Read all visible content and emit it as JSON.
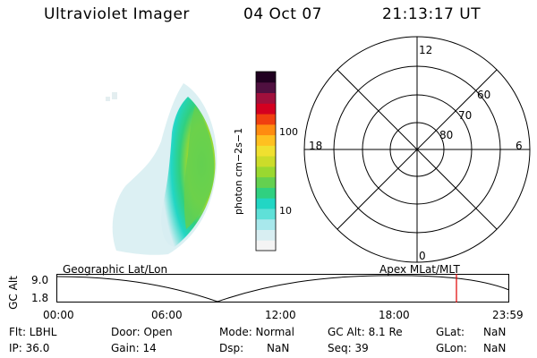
{
  "header": {
    "instrument": "Ultraviolet Imager",
    "date": "04 Oct 07",
    "time": "21:13:17 UT"
  },
  "colorbar": {
    "unit_label": "photon cm−2s−1",
    "ticks": [
      "100",
      "10"
    ],
    "colors": [
      "#f4f4f4",
      "#d8eef2",
      "#a8e8ec",
      "#5fe0d8",
      "#22d6c4",
      "#30d080",
      "#64d050",
      "#9ad830",
      "#ccdc2a",
      "#f0e030",
      "#ffc020",
      "#ff8c10",
      "#f04010",
      "#d40020",
      "#a0103c",
      "#501040",
      "#200020"
    ]
  },
  "polar": {
    "labels_mlt": [
      "12",
      "18",
      "6",
      "0"
    ],
    "labels_lat": [
      "60",
      "70",
      "80"
    ]
  },
  "timeline": {
    "left_caption": "Geographic Lat/Lon",
    "right_caption": "Apex  MLat/MLT",
    "axis_label": "GC Alt",
    "y_top": "9.0",
    "y_bottom": "1.8",
    "x_ticks": [
      "00:00",
      "06:00",
      "12:00",
      "18:00",
      "23:59"
    ],
    "marker_time": "21:13"
  },
  "info": {
    "flt": "Flt: LBHL",
    "ip": "IP: 36.0",
    "door": "Door: Open",
    "gain": "Gain: 14",
    "mode": "Mode: Normal",
    "dsp_label": "Dsp:",
    "dsp_value": "NaN",
    "gc_alt": "GC Alt: 8.1 Re",
    "seq": "Seq: 39",
    "glat_label": "GLat:",
    "glat_value": "NaN",
    "glon_label": "GLon:",
    "glon_value": "NaN"
  }
}
